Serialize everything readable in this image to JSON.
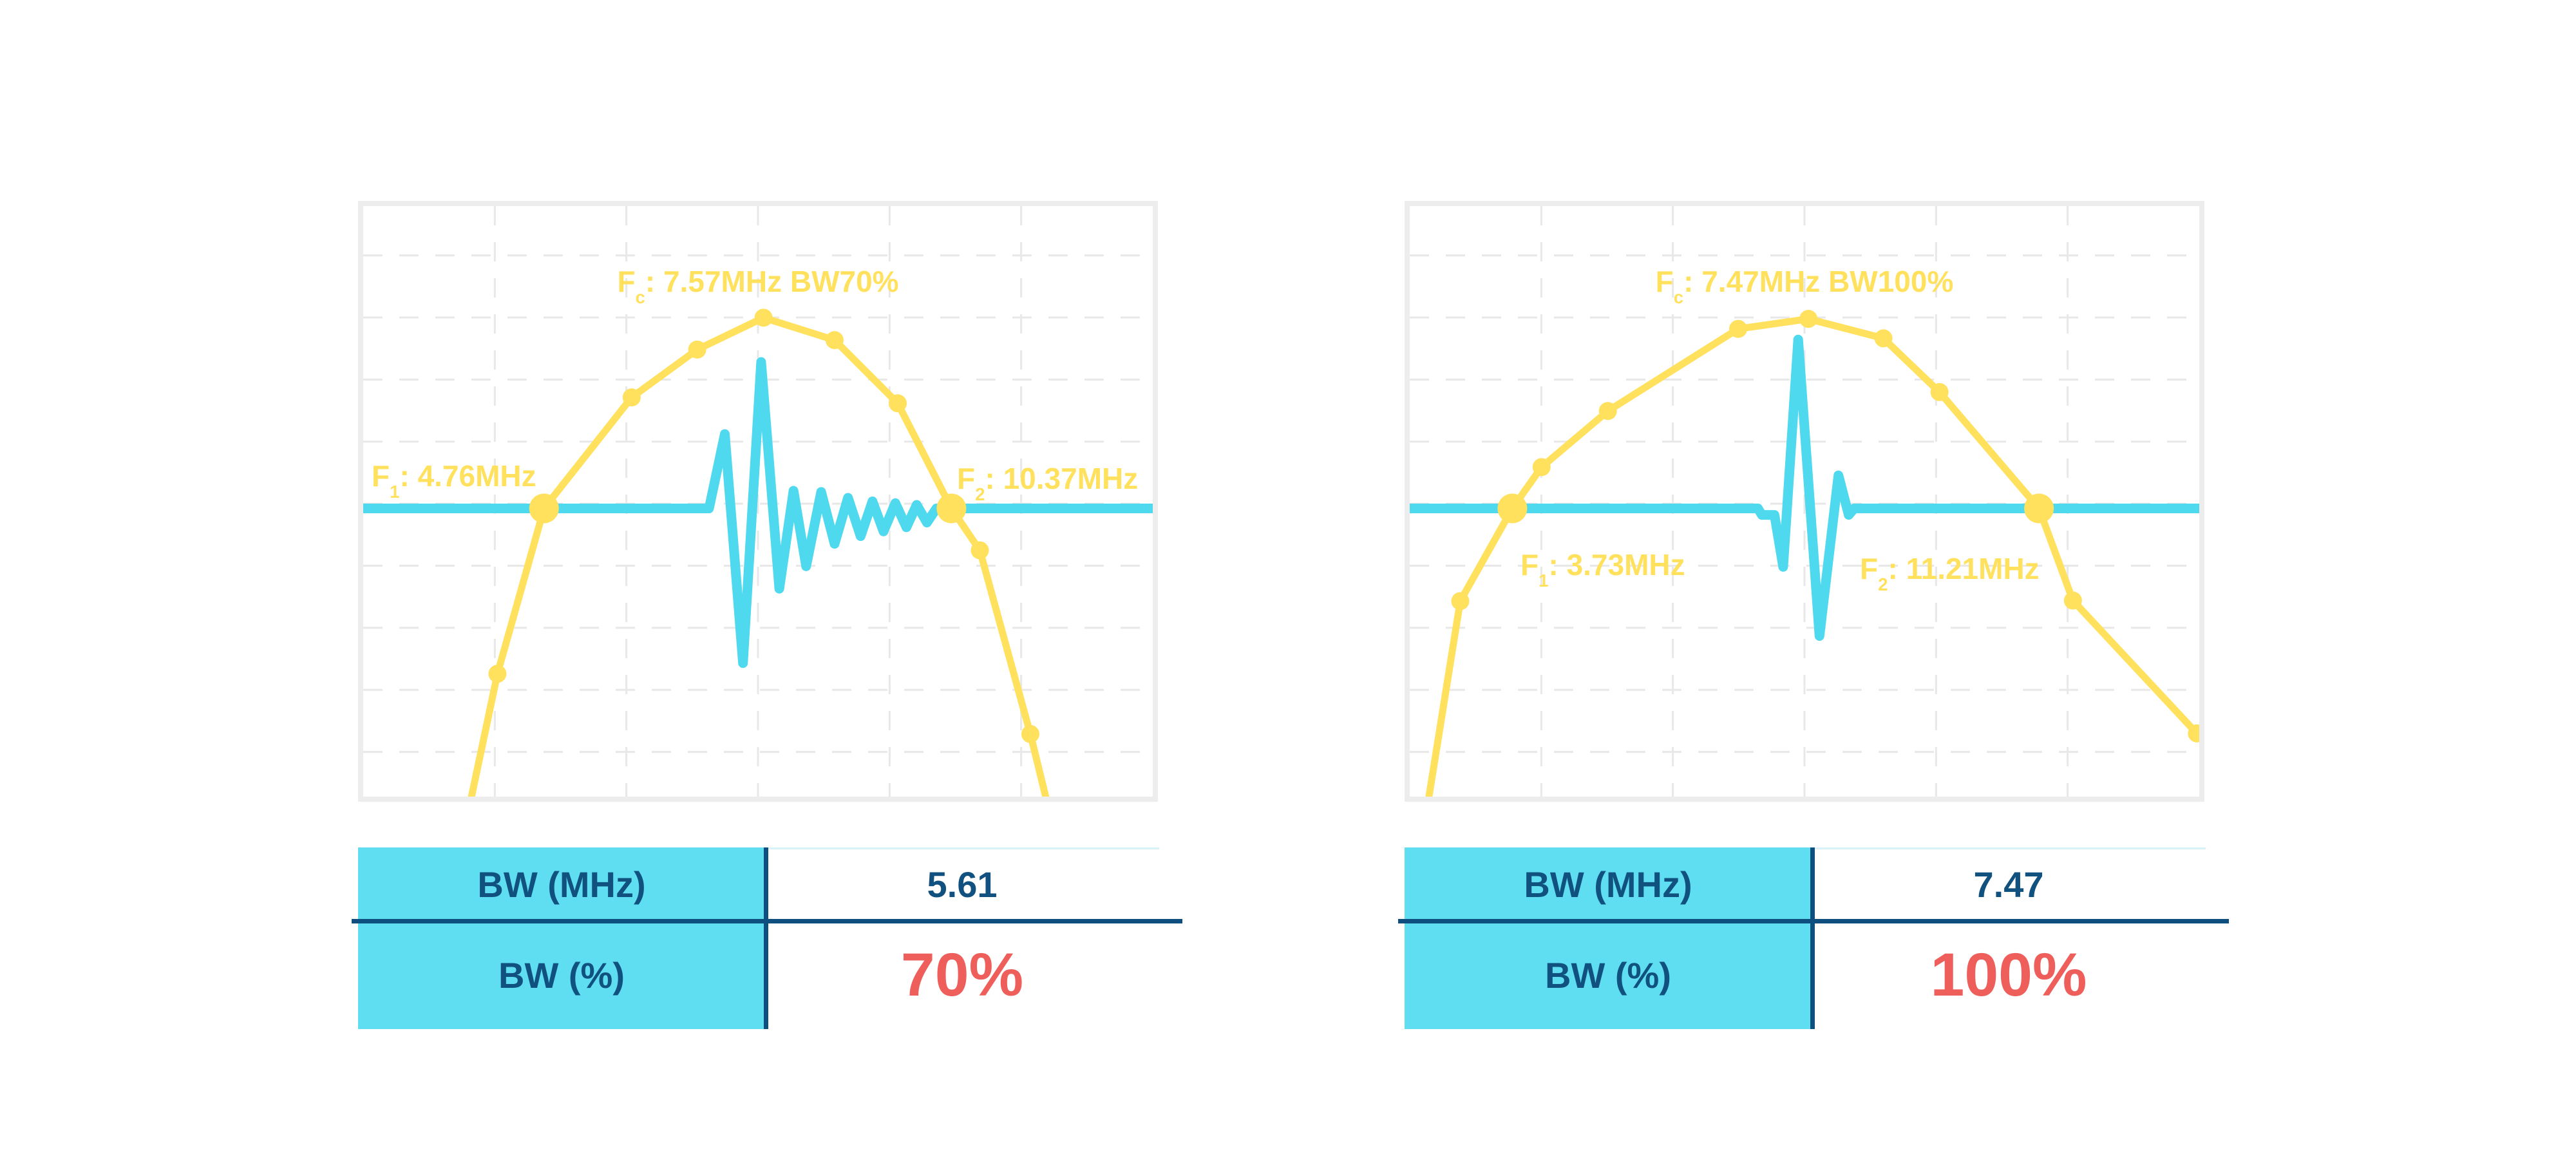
{
  "colors": {
    "accent_yellow": "#FFE15E",
    "accent_cyan": "#4FD9EF",
    "table_fill": "#5FDEF1",
    "navy": "#11517F",
    "red": "#EE5F5C",
    "grid": "#E8E8E8",
    "panel_border": "#EDEDED",
    "table_top_border": "#D9F1F9"
  },
  "charts": [
    {
      "title": {
        "prefix": "F",
        "sub": "c",
        "rest": ": 7.57MHz BW70%"
      },
      "f1": {
        "prefix": "F",
        "sub": "1",
        "rest": ": 4.76MHz"
      },
      "f2": {
        "prefix": "F",
        "sub": "2",
        "rest": ": 10.37MHz"
      }
    },
    {
      "title": {
        "prefix": "F",
        "sub": "c",
        "rest": ": 7.47MHz BW100%"
      },
      "f1": {
        "prefix": "F",
        "sub": "1",
        "rest": ": 3.73MHz"
      },
      "f2": {
        "prefix": "F",
        "sub": "2",
        "rest": ": 11.21MHz"
      }
    }
  ],
  "tables": [
    {
      "rows": [
        {
          "label": "BW (MHz)",
          "value": "5.61"
        },
        {
          "label": "BW (%)",
          "value": "70%"
        }
      ]
    },
    {
      "rows": [
        {
          "label": "BW (MHz)",
          "value": "7.47"
        },
        {
          "label": "BW (%)",
          "value": "100%"
        }
      ]
    }
  ],
  "chart_data": [
    {
      "type": "line",
      "title": "Fc: 7.57MHz BW70%",
      "units": "MHz",
      "fc_mhz": 7.57,
      "f1_mhz": 4.76,
      "f2_mhz": 10.37,
      "bw_mhz": 5.61,
      "bw_percent": 70,
      "axes_visible": false,
      "legend": "none",
      "grid": {
        "style": "dashed",
        "vertical_fractions": [
          0.1667,
          0.3333,
          0.5,
          0.6667,
          0.8333
        ],
        "horizontal_fractions": [
          0.0836,
          0.1887,
          0.2938,
          0.3989,
          0.504,
          0.6091,
          0.7142,
          0.8193,
          0.9244
        ]
      },
      "baseline_y": 0.512,
      "series": [
        {
          "name": "pulse-echo-waveform",
          "color_key": "accent_cyan",
          "stroke_width": 15,
          "points_norm": [
            [
              0,
              0.512
            ],
            [
              0.438,
              0.512
            ],
            [
              0.458,
              0.386
            ],
            [
              0.481,
              0.774
            ],
            [
              0.504,
              0.264
            ],
            [
              0.527,
              0.648
            ],
            [
              0.545,
              0.482
            ],
            [
              0.561,
              0.61
            ],
            [
              0.58,
              0.484
            ],
            [
              0.597,
              0.572
            ],
            [
              0.614,
              0.494
            ],
            [
              0.63,
              0.559
            ],
            [
              0.645,
              0.5
            ],
            [
              0.659,
              0.551
            ],
            [
              0.674,
              0.503
            ],
            [
              0.688,
              0.544
            ],
            [
              0.701,
              0.506
            ],
            [
              0.714,
              0.536
            ],
            [
              0.726,
              0.512
            ],
            [
              1,
              0.512
            ]
          ],
          "markers_norm": []
        },
        {
          "name": "frequency-spectrum",
          "color_key": "accent_yellow",
          "stroke_width": 11,
          "points_norm": [
            [
              0.134,
              1.02
            ],
            [
              0.17,
              0.792
            ],
            [
              0.229,
              0.512
            ],
            [
              0.34,
              0.324
            ],
            [
              0.423,
              0.243
            ],
            [
              0.507,
              0.189
            ],
            [
              0.597,
              0.227
            ],
            [
              0.677,
              0.334
            ],
            [
              0.745,
              0.512
            ],
            [
              0.781,
              0.583
            ],
            [
              0.845,
              0.894
            ],
            [
              0.868,
              1.02
            ]
          ],
          "markers_norm": [
            [
              0.17,
              0.792,
              "n"
            ],
            [
              0.229,
              0.512,
              "big"
            ],
            [
              0.34,
              0.324,
              "n"
            ],
            [
              0.423,
              0.243,
              "n"
            ],
            [
              0.507,
              0.189,
              "n"
            ],
            [
              0.597,
              0.227,
              "n"
            ],
            [
              0.677,
              0.334,
              "n"
            ],
            [
              0.745,
              0.512,
              "big"
            ],
            [
              0.781,
              0.583,
              "n"
            ],
            [
              0.845,
              0.894,
              "n"
            ]
          ]
        }
      ]
    },
    {
      "type": "line",
      "title": "Fc: 7.47MHz BW100%",
      "units": "MHz",
      "fc_mhz": 7.47,
      "f1_mhz": 3.73,
      "f2_mhz": 11.21,
      "bw_mhz": 7.47,
      "bw_percent": 100,
      "axes_visible": false,
      "legend": "none",
      "grid": {
        "style": "dashed",
        "vertical_fractions": [
          0.1667,
          0.3333,
          0.5,
          0.6667,
          0.8333
        ],
        "horizontal_fractions": [
          0.0836,
          0.1887,
          0.2938,
          0.3989,
          0.504,
          0.6091,
          0.7142,
          0.8193,
          0.9244
        ]
      },
      "baseline_y": 0.512,
      "series": [
        {
          "name": "pulse-echo-waveform",
          "color_key": "accent_cyan",
          "stroke_width": 15,
          "points_norm": [
            [
              0,
              0.512
            ],
            [
              0.441,
              0.512
            ],
            [
              0.446,
              0.523
            ],
            [
              0.462,
              0.523
            ],
            [
              0.473,
              0.611
            ],
            [
              0.492,
              0.226
            ],
            [
              0.519,
              0.728
            ],
            [
              0.543,
              0.456
            ],
            [
              0.556,
              0.523
            ],
            [
              0.563,
              0.512
            ],
            [
              1,
              0.512
            ]
          ],
          "markers_norm": []
        },
        {
          "name": "frequency-spectrum",
          "color_key": "accent_yellow",
          "stroke_width": 11,
          "points_norm": [
            [
              0.022,
              1.02
            ],
            [
              0.064,
              0.669
            ],
            [
              0.13,
              0.512
            ],
            [
              0.167,
              0.442
            ],
            [
              0.251,
              0.347
            ],
            [
              0.416,
              0.208
            ],
            [
              0.505,
              0.191
            ],
            [
              0.6,
              0.224
            ],
            [
              0.671,
              0.315
            ],
            [
              0.797,
              0.512
            ],
            [
              0.84,
              0.668
            ],
            [
              0.997,
              0.893
            ]
          ],
          "markers_norm": [
            [
              0.064,
              0.669,
              "n"
            ],
            [
              0.13,
              0.512,
              "big"
            ],
            [
              0.167,
              0.442,
              "n"
            ],
            [
              0.251,
              0.347,
              "n"
            ],
            [
              0.416,
              0.208,
              "n"
            ],
            [
              0.505,
              0.191,
              "n"
            ],
            [
              0.6,
              0.224,
              "n"
            ],
            [
              0.671,
              0.315,
              "n"
            ],
            [
              0.797,
              0.512,
              "big"
            ],
            [
              0.84,
              0.668,
              "n"
            ],
            [
              0.997,
              0.893,
              "n"
            ]
          ]
        }
      ]
    }
  ]
}
